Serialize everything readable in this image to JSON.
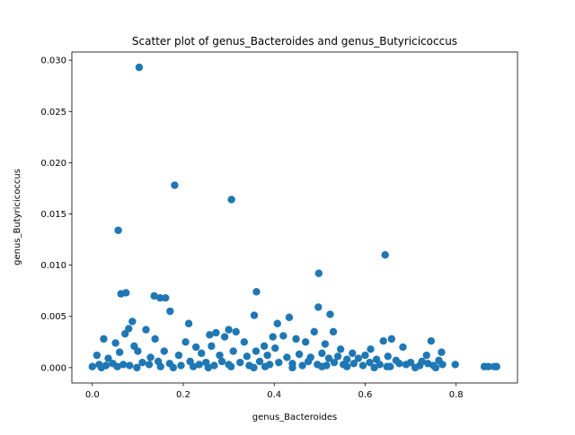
{
  "chart_data": {
    "type": "scatter",
    "title": "Scatter plot of genus_Bacteroides and genus_Butyricicoccus",
    "xlabel": "genus_Bacteroides",
    "ylabel": "genus_Butyricicoccus",
    "xlim": [
      -0.045,
      0.935
    ],
    "ylim": [
      -0.0015,
      0.0308
    ],
    "xticks": [
      0.0,
      0.2,
      0.4,
      0.6,
      0.8
    ],
    "xtick_labels": [
      "0.0",
      "0.2",
      "0.4",
      "0.6",
      "0.8"
    ],
    "yticks": [
      0.0,
      0.005,
      0.01,
      0.015,
      0.02,
      0.025,
      0.03
    ],
    "ytick_labels": [
      "0.000",
      "0.005",
      "0.010",
      "0.015",
      "0.020",
      "0.025",
      "0.030"
    ],
    "grid": false,
    "legend": "none",
    "marker_color": "#1f77b4",
    "points": [
      [
        0.103,
        0.0293
      ],
      [
        0.181,
        0.0178
      ],
      [
        0.306,
        0.0164
      ],
      [
        0.057,
        0.0134
      ],
      [
        0.644,
        0.011
      ],
      [
        0.498,
        0.0092
      ],
      [
        0.361,
        0.0074
      ],
      [
        0.063,
        0.0072
      ],
      [
        0.074,
        0.0073
      ],
      [
        0.136,
        0.007
      ],
      [
        0.149,
        0.0068
      ],
      [
        0.161,
        0.0068
      ],
      [
        0.171,
        0.0055
      ],
      [
        0.497,
        0.0059
      ],
      [
        0.523,
        0.0052
      ],
      [
        0.356,
        0.0051
      ],
      [
        0.433,
        0.0049
      ],
      [
        0.088,
        0.0045
      ],
      [
        0.212,
        0.0043
      ],
      [
        0.407,
        0.0043
      ],
      [
        0.08,
        0.0038
      ],
      [
        0.118,
        0.0037
      ],
      [
        0.072,
        0.0033
      ],
      [
        0.53,
        0.0035
      ],
      [
        0.3,
        0.0037
      ],
      [
        0.316,
        0.0035
      ],
      [
        0.488,
        0.0035
      ],
      [
        0.025,
        0.0028
      ],
      [
        0.051,
        0.0024
      ],
      [
        0.092,
        0.0021
      ],
      [
        0.138,
        0.0028
      ],
      [
        0.228,
        0.002
      ],
      [
        0.258,
        0.0032
      ],
      [
        0.272,
        0.0034
      ],
      [
        0.291,
        0.003
      ],
      [
        0.334,
        0.0025
      ],
      [
        0.378,
        0.0021
      ],
      [
        0.397,
        0.003
      ],
      [
        0.42,
        0.0031
      ],
      [
        0.448,
        0.0028
      ],
      [
        0.469,
        0.0025
      ],
      [
        0.512,
        0.0023
      ],
      [
        0.546,
        0.0018
      ],
      [
        0.572,
        0.0014
      ],
      [
        0.612,
        0.0018
      ],
      [
        0.64,
        0.0026
      ],
      [
        0.658,
        0.0028
      ],
      [
        0.683,
        0.002
      ],
      [
        0.745,
        0.0026
      ],
      [
        0.768,
        0.0015
      ],
      [
        0.01,
        0.0012
      ],
      [
        0.035,
        0.0009
      ],
      [
        0.06,
        0.0015
      ],
      [
        0.1,
        0.0016
      ],
      [
        0.128,
        0.001
      ],
      [
        0.158,
        0.0016
      ],
      [
        0.19,
        0.0012
      ],
      [
        0.205,
        0.0025
      ],
      [
        0.24,
        0.0014
      ],
      [
        0.262,
        0.0021
      ],
      [
        0.28,
        0.0012
      ],
      [
        0.31,
        0.0016
      ],
      [
        0.34,
        0.0011
      ],
      [
        0.36,
        0.0016
      ],
      [
        0.385,
        0.0012
      ],
      [
        0.402,
        0.0019
      ],
      [
        0.428,
        0.001
      ],
      [
        0.455,
        0.0013
      ],
      [
        0.48,
        0.001
      ],
      [
        0.505,
        0.0014
      ],
      [
        0.52,
        0.0009
      ],
      [
        0.54,
        0.0011
      ],
      [
        0.56,
        0.0008
      ],
      [
        0.585,
        0.0009
      ],
      [
        0.6,
        0.0012
      ],
      [
        0.625,
        0.0008
      ],
      [
        0.65,
        0.0011
      ],
      [
        0.668,
        0.0007
      ],
      [
        0.7,
        0.0005
      ],
      [
        0.725,
        0.0006
      ],
      [
        0.735,
        0.0012
      ],
      [
        0.762,
        0.0007
      ],
      [
        0.015,
        0.0003
      ],
      [
        0.03,
        0.0002
      ],
      [
        0.045,
        0.0004
      ],
      [
        0.068,
        0.0003
      ],
      [
        0.082,
        0.0002
      ],
      [
        0.11,
        0.0005
      ],
      [
        0.125,
        0.0003
      ],
      [
        0.145,
        0.0006
      ],
      [
        0.17,
        0.0004
      ],
      [
        0.195,
        0.0002
      ],
      [
        0.215,
        0.0006
      ],
      [
        0.235,
        0.0003
      ],
      [
        0.25,
        0.0005
      ],
      [
        0.268,
        0.0002
      ],
      [
        0.285,
        0.0006
      ],
      [
        0.3,
        0.0003
      ],
      [
        0.325,
        0.0005
      ],
      [
        0.345,
        0.0002
      ],
      [
        0.368,
        0.0006
      ],
      [
        0.39,
        0.0003
      ],
      [
        0.41,
        0.0005
      ],
      [
        0.44,
        0.0004
      ],
      [
        0.462,
        0.0002
      ],
      [
        0.475,
        0.0006
      ],
      [
        0.495,
        0.0003
      ],
      [
        0.515,
        0.0002
      ],
      [
        0.532,
        0.0005
      ],
      [
        0.552,
        0.0003
      ],
      [
        0.575,
        0.0004
      ],
      [
        0.595,
        0.0002
      ],
      [
        0.61,
        0.0005
      ],
      [
        0.632,
        0.0003
      ],
      [
        0.655,
        0.0001
      ],
      [
        0.675,
        0.0004
      ],
      [
        0.69,
        0.0003
      ],
      [
        0.72,
        0.0002
      ],
      [
        0.738,
        0.0004
      ],
      [
        0.75,
        0.0002
      ],
      [
        0.77,
        0.0003
      ],
      [
        0.798,
        0.0003
      ],
      [
        0.862,
        0.0001
      ],
      [
        0.871,
        0.0001
      ],
      [
        0.884,
        0.0001
      ],
      [
        0.889,
        0.0001
      ],
      [
        0.0,
        0.0001
      ],
      [
        0.02,
        0.0
      ],
      [
        0.055,
        0.0001
      ],
      [
        0.098,
        0.0
      ],
      [
        0.15,
        0.0001
      ],
      [
        0.178,
        0.0
      ],
      [
        0.222,
        0.0001
      ],
      [
        0.255,
        0.0
      ],
      [
        0.305,
        0.0001
      ],
      [
        0.355,
        0.0
      ],
      [
        0.38,
        0.0001
      ],
      [
        0.44,
        0.0
      ],
      [
        0.505,
        0.0001
      ],
      [
        0.56,
        0.0001
      ],
      [
        0.62,
        0.0
      ],
      [
        0.648,
        0.0001
      ],
      [
        0.71,
        0.0
      ],
      [
        0.755,
        0.0
      ]
    ]
  }
}
